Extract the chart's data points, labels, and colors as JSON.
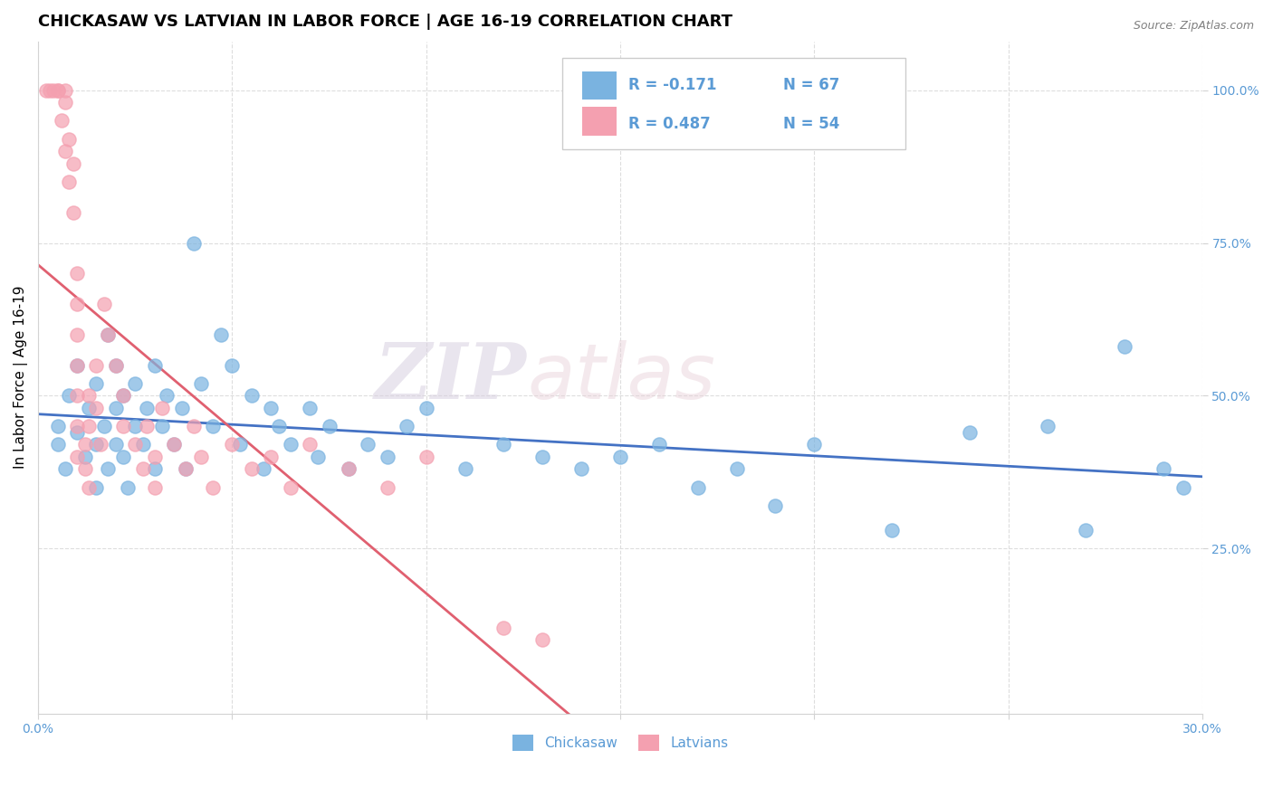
{
  "title": "CHICKASAW VS LATVIAN IN LABOR FORCE | AGE 16-19 CORRELATION CHART",
  "source_text": "Source: ZipAtlas.com",
  "ylabel": "In Labor Force | Age 16-19",
  "xlim": [
    0.0,
    0.3
  ],
  "ylim": [
    -0.02,
    1.08
  ],
  "xticks": [
    0.0,
    0.05,
    0.1,
    0.15,
    0.2,
    0.25,
    0.3
  ],
  "xticklabels": [
    "0.0%",
    "",
    "",
    "",
    "",
    "",
    "30.0%"
  ],
  "yticks_right": [
    0.25,
    0.5,
    0.75,
    1.0
  ],
  "ytickslabels_right": [
    "25.0%",
    "50.0%",
    "75.0%",
    "100.0%"
  ],
  "chickasaw_color": "#7ab3e0",
  "latvian_color": "#f4a0b0",
  "trendline_chickasaw_color": "#4472c4",
  "trendline_latvian_color": "#e06070",
  "legend_R_chickasaw": "R = -0.171",
  "legend_N_chickasaw": "N = 67",
  "legend_R_latvian": "R = 0.487",
  "legend_N_latvian": "N = 54",
  "legend_label_chickasaw": "Chickasaw",
  "legend_label_latvian": "Latvians",
  "watermark_zip": "ZIP",
  "watermark_atlas": "atlas",
  "background_color": "#ffffff",
  "grid_color": "#dddddd",
  "title_fontsize": 13,
  "axis_label_fontsize": 11,
  "tick_fontsize": 10,
  "chickasaw_data_x": [
    0.005,
    0.005,
    0.007,
    0.008,
    0.01,
    0.01,
    0.012,
    0.013,
    0.015,
    0.015,
    0.015,
    0.017,
    0.018,
    0.018,
    0.02,
    0.02,
    0.02,
    0.022,
    0.022,
    0.023,
    0.025,
    0.025,
    0.027,
    0.028,
    0.03,
    0.03,
    0.032,
    0.033,
    0.035,
    0.037,
    0.038,
    0.04,
    0.042,
    0.045,
    0.047,
    0.05,
    0.052,
    0.055,
    0.058,
    0.06,
    0.062,
    0.065,
    0.07,
    0.072,
    0.075,
    0.08,
    0.085,
    0.09,
    0.095,
    0.1,
    0.11,
    0.12,
    0.13,
    0.14,
    0.15,
    0.16,
    0.17,
    0.18,
    0.19,
    0.2,
    0.22,
    0.24,
    0.26,
    0.27,
    0.28,
    0.29,
    0.295
  ],
  "chickasaw_data_y": [
    0.42,
    0.45,
    0.38,
    0.5,
    0.44,
    0.55,
    0.4,
    0.48,
    0.42,
    0.35,
    0.52,
    0.45,
    0.38,
    0.6,
    0.42,
    0.48,
    0.55,
    0.4,
    0.5,
    0.35,
    0.45,
    0.52,
    0.42,
    0.48,
    0.38,
    0.55,
    0.45,
    0.5,
    0.42,
    0.48,
    0.38,
    0.75,
    0.52,
    0.45,
    0.6,
    0.55,
    0.42,
    0.5,
    0.38,
    0.48,
    0.45,
    0.42,
    0.48,
    0.4,
    0.45,
    0.38,
    0.42,
    0.4,
    0.45,
    0.48,
    0.38,
    0.42,
    0.4,
    0.38,
    0.4,
    0.42,
    0.35,
    0.38,
    0.32,
    0.42,
    0.28,
    0.44,
    0.45,
    0.28,
    0.58,
    0.38,
    0.35
  ],
  "latvian_data_x": [
    0.002,
    0.003,
    0.004,
    0.005,
    0.005,
    0.006,
    0.007,
    0.007,
    0.007,
    0.008,
    0.008,
    0.009,
    0.009,
    0.01,
    0.01,
    0.01,
    0.01,
    0.01,
    0.01,
    0.01,
    0.012,
    0.012,
    0.013,
    0.013,
    0.013,
    0.015,
    0.015,
    0.016,
    0.017,
    0.018,
    0.02,
    0.022,
    0.022,
    0.025,
    0.027,
    0.028,
    0.03,
    0.03,
    0.032,
    0.035,
    0.038,
    0.04,
    0.042,
    0.045,
    0.05,
    0.055,
    0.06,
    0.065,
    0.07,
    0.08,
    0.09,
    0.1,
    0.12,
    0.13
  ],
  "latvian_data_y": [
    1.0,
    1.0,
    1.0,
    1.0,
    1.0,
    0.95,
    0.98,
    1.0,
    0.9,
    0.85,
    0.92,
    0.88,
    0.8,
    0.7,
    0.65,
    0.6,
    0.55,
    0.5,
    0.45,
    0.4,
    0.42,
    0.38,
    0.45,
    0.5,
    0.35,
    0.55,
    0.48,
    0.42,
    0.65,
    0.6,
    0.55,
    0.5,
    0.45,
    0.42,
    0.38,
    0.45,
    0.4,
    0.35,
    0.48,
    0.42,
    0.38,
    0.45,
    0.4,
    0.35,
    0.42,
    0.38,
    0.4,
    0.35,
    0.42,
    0.38,
    0.35,
    0.4,
    0.12,
    0.1
  ]
}
